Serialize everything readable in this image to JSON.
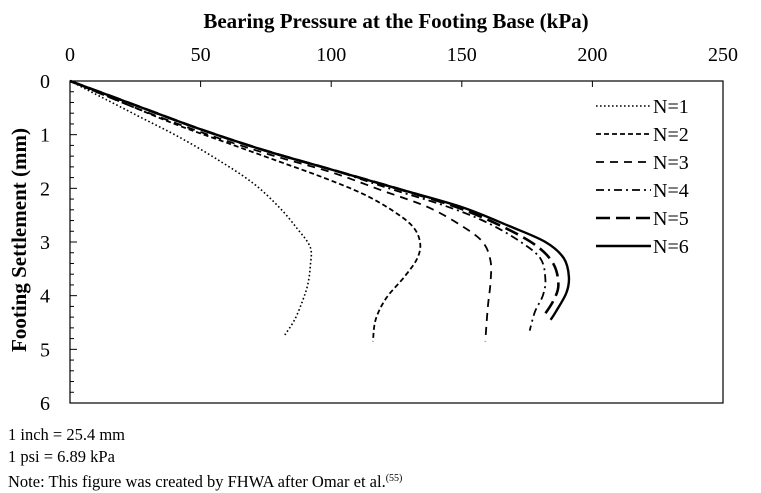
{
  "chart_data": {
    "type": "line",
    "title": "Bearing Pressure at the Footing Base (kPa)",
    "xlabel": "Bearing Pressure at the Footing Base (kPa)",
    "ylabel": "Footing Settlement (mm)",
    "xlim": [
      0,
      250
    ],
    "ylim": [
      0,
      6
    ],
    "x_axis_position": "top",
    "y_axis_inverted": true,
    "x_ticks": [
      0,
      50,
      100,
      150,
      200,
      250
    ],
    "y_ticks": [
      0,
      1,
      2,
      3,
      4,
      5,
      6
    ],
    "grid": false,
    "legend_position": "top-right",
    "series": [
      {
        "name": "N=1",
        "style": "dotted",
        "x": [
          0,
          14,
          28,
          42,
          56,
          70,
          80,
          87,
          92,
          92,
          91,
          89,
          86,
          82
        ],
        "y": [
          0,
          0.35,
          0.7,
          1.05,
          1.45,
          1.9,
          2.35,
          2.75,
          3.1,
          3.45,
          3.8,
          4.1,
          4.45,
          4.75
        ]
      },
      {
        "name": "N=2",
        "style": "short-dash",
        "x": [
          0,
          20,
          40,
          60,
          80,
          97,
          112,
          123,
          131,
          134,
          133,
          128,
          121,
          117,
          116
        ],
        "y": [
          0,
          0.4,
          0.8,
          1.15,
          1.5,
          1.8,
          2.1,
          2.4,
          2.7,
          3.0,
          3.3,
          3.65,
          4.05,
          4.45,
          4.85
        ]
      },
      {
        "name": "N=3",
        "style": "dash",
        "x": [
          0,
          25,
          50,
          75,
          100,
          120,
          137,
          150,
          158,
          161,
          161,
          160,
          159
        ],
        "y": [
          0,
          0.5,
          0.95,
          1.35,
          1.7,
          2.05,
          2.35,
          2.7,
          3.0,
          3.35,
          3.75,
          4.2,
          4.85
        ]
      },
      {
        "name": "N=4",
        "style": "dash-dot",
        "x": [
          0,
          25,
          50,
          75,
          100,
          122,
          142,
          158,
          171,
          180,
          182,
          181,
          178,
          176
        ],
        "y": [
          0,
          0.45,
          0.9,
          1.3,
          1.65,
          2.0,
          2.3,
          2.6,
          2.95,
          3.3,
          3.7,
          4.0,
          4.3,
          4.65
        ]
      },
      {
        "name": "N=5",
        "style": "long-dash",
        "x": [
          0,
          25,
          50,
          75,
          100,
          125,
          148,
          165,
          178,
          185,
          187,
          185,
          181
        ],
        "y": [
          0,
          0.45,
          0.9,
          1.3,
          1.65,
          2.0,
          2.35,
          2.7,
          3.05,
          3.4,
          3.8,
          4.1,
          4.4
        ]
      },
      {
        "name": "N=6",
        "style": "solid",
        "x": [
          0,
          25,
          50,
          75,
          100,
          125,
          150,
          168,
          182,
          189,
          191,
          190,
          186,
          184
        ],
        "y": [
          0,
          0.45,
          0.9,
          1.3,
          1.65,
          2.0,
          2.35,
          2.7,
          3.0,
          3.3,
          3.65,
          3.95,
          4.3,
          4.45
        ]
      }
    ]
  },
  "notes": {
    "line1": "1 inch = 25.4 mm",
    "line2": "1 psi = 6.89 kPa",
    "line3": "Note: This figure was created by FHWA after Omar et al.",
    "line3_ref": "(55)"
  }
}
